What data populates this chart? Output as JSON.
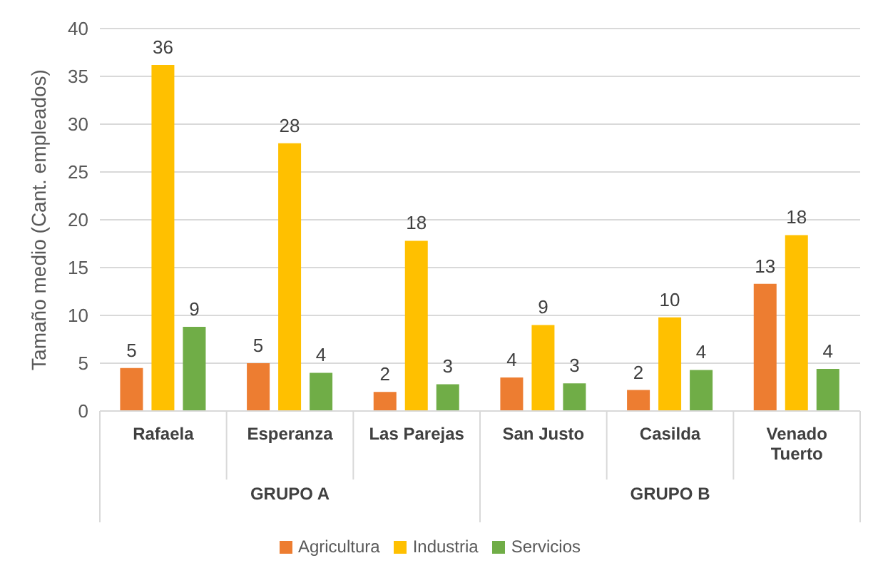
{
  "chart_data": {
    "type": "bar",
    "ylabel": "Tamaño medio (Cant. empleados)",
    "categories": [
      "Rafaela",
      "Esperanza",
      "Las Parejas",
      "San Justo",
      "Casilda",
      "Venado Tuerto"
    ],
    "series": [
      {
        "name": "Agricultura",
        "color": "#ed7d31",
        "values": [
          4.5,
          5,
          2,
          3.5,
          2.2,
          13.3
        ],
        "value_labels": [
          "5",
          "5",
          "2",
          "4",
          "2",
          "13"
        ]
      },
      {
        "name": "Industria",
        "color": "#ffc000",
        "values": [
          36.2,
          28,
          17.8,
          9,
          9.8,
          18.4
        ],
        "value_labels": [
          "36",
          "28",
          "18",
          "9",
          "10",
          "18"
        ]
      },
      {
        "name": "Servicios",
        "color": "#70ad47",
        "values": [
          8.8,
          4,
          2.8,
          2.9,
          4.3,
          4.4
        ],
        "value_labels": [
          "9",
          "4",
          "3",
          "3",
          "4",
          "4"
        ]
      }
    ],
    "annotations": [
      "GRUPO A",
      "GRUPO B"
    ],
    "ylim": [
      0,
      40
    ],
    "yticks": [
      0,
      5,
      10,
      15,
      20,
      25,
      30,
      35,
      40
    ],
    "grid": "y",
    "legend": "bottom"
  }
}
